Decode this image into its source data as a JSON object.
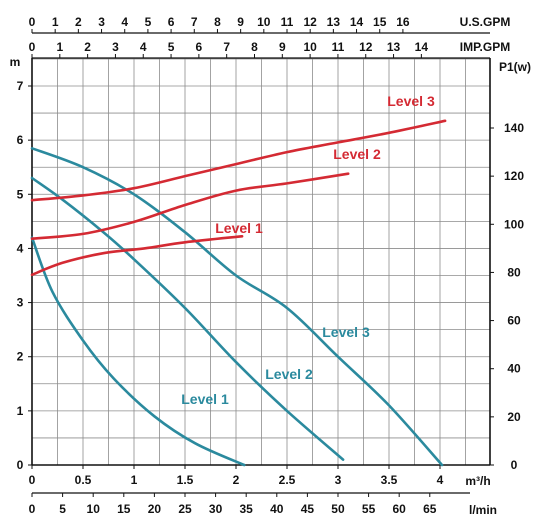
{
  "chart_data": {
    "type": "line",
    "colors": {
      "head": "#2b8a9e",
      "power": "#d42a33",
      "grid": "#8c8c8c",
      "axis": "#111111"
    },
    "axes": {
      "left": {
        "unit": "m",
        "min": 0,
        "max": 7.5,
        "ticks": [
          0,
          1,
          2,
          3,
          4,
          5,
          6,
          7
        ]
      },
      "right": {
        "unit": "P1(w)",
        "min": 0,
        "max": 165,
        "ticks": [
          0,
          20,
          40,
          60,
          80,
          100,
          120,
          140
        ]
      },
      "bottom_m3h": {
        "unit": "m³/h",
        "min": 0,
        "max": 4.4,
        "ticks": [
          {
            "v": 0,
            "t": "0"
          },
          {
            "v": 0.5,
            "t": "0.5"
          },
          {
            "v": 1,
            "t": "1"
          },
          {
            "v": 1.5,
            "t": "1.5"
          },
          {
            "v": 2,
            "t": "2"
          },
          {
            "v": 2.5,
            "t": "2.5"
          },
          {
            "v": 3,
            "t": "3"
          },
          {
            "v": 3.5,
            "t": "3.5"
          },
          {
            "v": 4,
            "t": "4"
          }
        ]
      },
      "bottom_lmin": {
        "unit": "l/min",
        "ticks": [
          0,
          5,
          10,
          15,
          20,
          25,
          30,
          35,
          40,
          45,
          50,
          55,
          60,
          65
        ]
      },
      "top_usgpm": {
        "unit": "U.S.GPM",
        "ticks": [
          0,
          1,
          2,
          3,
          4,
          5,
          6,
          7,
          8,
          9,
          10,
          11,
          12,
          13,
          14,
          15,
          16
        ]
      },
      "top_impgpm": {
        "unit": "IMP.GPM",
        "ticks": [
          0,
          1,
          2,
          3,
          4,
          5,
          6,
          7,
          8,
          9,
          10,
          11,
          12,
          13,
          14
        ]
      }
    },
    "grid": true,
    "head_series": [
      {
        "name": "Level 1",
        "label": "Level 1",
        "points": [
          [
            0,
            4.2
          ],
          [
            0.2,
            3.2
          ],
          [
            0.5,
            2.3
          ],
          [
            0.8,
            1.6
          ],
          [
            1.2,
            0.9
          ],
          [
            1.6,
            0.4
          ],
          [
            2.08,
            0
          ]
        ]
      },
      {
        "name": "Level 2",
        "label": "Level 2",
        "points": [
          [
            0,
            5.3
          ],
          [
            0.3,
            4.9
          ],
          [
            0.7,
            4.3
          ],
          [
            1,
            3.8
          ],
          [
            1.5,
            2.9
          ],
          [
            2,
            1.9
          ],
          [
            2.5,
            1.0
          ],
          [
            3.05,
            0.1
          ]
        ]
      },
      {
        "name": "Level 3",
        "label": "Level 3",
        "points": [
          [
            0,
            5.85
          ],
          [
            0.5,
            5.5
          ],
          [
            1,
            5.0
          ],
          [
            1.5,
            4.3
          ],
          [
            2,
            3.5
          ],
          [
            2.5,
            2.9
          ],
          [
            3,
            2.0
          ],
          [
            3.5,
            1.1
          ],
          [
            4.02,
            0
          ]
        ]
      }
    ],
    "power_series": [
      {
        "name": "Level 1",
        "label": "Level 1",
        "points": [
          [
            0,
            79
          ],
          [
            0.3,
            84
          ],
          [
            0.7,
            88
          ],
          [
            1.1,
            90
          ],
          [
            1.5,
            92.5
          ],
          [
            2.06,
            95
          ]
        ]
      },
      {
        "name": "Level 2",
        "label": "Level 2",
        "points": [
          [
            0,
            94
          ],
          [
            0.5,
            96
          ],
          [
            1,
            101
          ],
          [
            1.5,
            108
          ],
          [
            2,
            114
          ],
          [
            2.5,
            117
          ],
          [
            3.1,
            121
          ]
        ]
      },
      {
        "name": "Level 3",
        "label": "Level 3",
        "points": [
          [
            0,
            110
          ],
          [
            0.5,
            112
          ],
          [
            1,
            115
          ],
          [
            1.5,
            120
          ],
          [
            2,
            125
          ],
          [
            2.5,
            130
          ],
          [
            3,
            134
          ],
          [
            3.5,
            138
          ],
          [
            4.05,
            143
          ]
        ]
      }
    ]
  }
}
